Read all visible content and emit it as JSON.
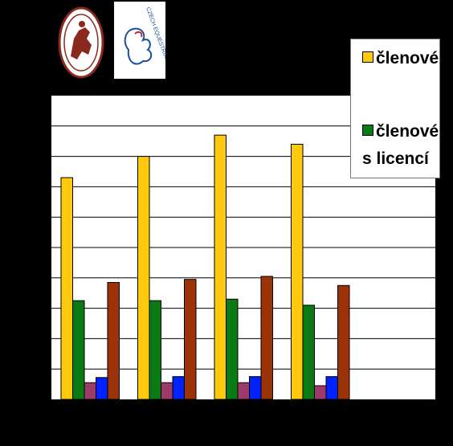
{
  "logos": {
    "left": {
      "icon": "horse-rider-seal-icon",
      "text": "EQUESTRIAN"
    },
    "right": {
      "icon": "horse-head-logo-icon",
      "text": "CZECH EQUESTRIAN FEDERATION"
    }
  },
  "legend": {
    "item1": "členové",
    "item2": "členové s licencí",
    "colors": [
      "#FFC90E",
      "#0A7A14"
    ]
  },
  "chart_data": {
    "type": "bar",
    "categories": [
      "",
      "",
      "",
      ""
    ],
    "ylim": [
      0,
      10
    ],
    "grid": true,
    "legend_position": "top-right",
    "series": [
      {
        "name": "členové",
        "color": "#FFC90E",
        "values": [
          7.3,
          8.0,
          8.7,
          8.4
        ]
      },
      {
        "name": "členové s licencí",
        "color": "#0A7A14",
        "values": [
          3.25,
          3.25,
          3.3,
          3.1
        ]
      },
      {
        "color": "#9E3A6A",
        "values": [
          0.55,
          0.55,
          0.55,
          0.45
        ]
      },
      {
        "color": "#0022FF",
        "values": [
          0.72,
          0.75,
          0.75,
          0.75
        ]
      },
      {
        "color": "#9C3208",
        "values": [
          3.85,
          3.95,
          4.05,
          3.75
        ]
      }
    ]
  }
}
